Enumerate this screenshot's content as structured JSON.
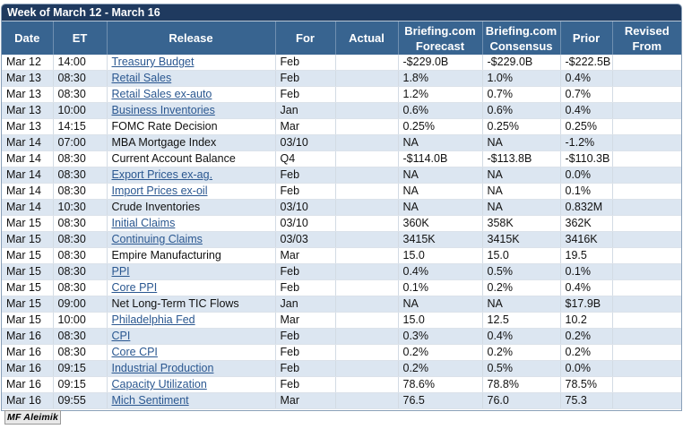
{
  "week_title": "Week of March 12 - March 16",
  "columns": {
    "date": "Date",
    "et": "ET",
    "release": "Release",
    "for": "For",
    "actual": "Actual",
    "forecast_line1": "Briefing.com",
    "forecast_line2": "Forecast",
    "consensus_line1": "Briefing.com",
    "consensus_line2": "Consensus",
    "prior": "Prior",
    "revised_line1": "Revised",
    "revised_line2": "From"
  },
  "rows": [
    {
      "date": "Mar 12",
      "et": "14:00",
      "release": "Treasury Budget",
      "link": true,
      "for": "Feb",
      "actual": "",
      "forecast": "-$229.0B",
      "consensus": "-$229.0B",
      "prior": "-$222.5B",
      "revised": ""
    },
    {
      "date": "Mar 13",
      "et": "08:30",
      "release": "Retail Sales",
      "link": true,
      "for": "Feb",
      "actual": "",
      "forecast": "1.8%",
      "consensus": "1.0%",
      "prior": "0.4%",
      "revised": ""
    },
    {
      "date": "Mar 13",
      "et": "08:30",
      "release": "Retail Sales ex-auto",
      "link": true,
      "for": "Feb",
      "actual": "",
      "forecast": "1.2%",
      "consensus": "0.7%",
      "prior": "0.7%",
      "revised": ""
    },
    {
      "date": "Mar 13",
      "et": "10:00",
      "release": "Business Inventories",
      "link": true,
      "for": "Jan",
      "actual": "",
      "forecast": "0.6%",
      "consensus": "0.6%",
      "prior": "0.4%",
      "revised": ""
    },
    {
      "date": "Mar 13",
      "et": "14:15",
      "release": "FOMC Rate Decision",
      "link": false,
      "for": "Mar",
      "actual": "",
      "forecast": "0.25%",
      "consensus": "0.25%",
      "prior": "0.25%",
      "revised": ""
    },
    {
      "date": "Mar 14",
      "et": "07:00",
      "release": "MBA Mortgage Index",
      "link": false,
      "for": "03/10",
      "actual": "",
      "forecast": "NA",
      "consensus": "NA",
      "prior": "-1.2%",
      "revised": ""
    },
    {
      "date": "Mar 14",
      "et": "08:30",
      "release": "Current Account Balance",
      "link": false,
      "for": "Q4",
      "actual": "",
      "forecast": "-$114.0B",
      "consensus": "-$113.8B",
      "prior": "-$110.3B",
      "revised": ""
    },
    {
      "date": "Mar 14",
      "et": "08:30",
      "release": "Export Prices ex-ag.",
      "link": true,
      "for": "Feb",
      "actual": "",
      "forecast": "NA",
      "consensus": "NA",
      "prior": "0.0%",
      "revised": ""
    },
    {
      "date": "Mar 14",
      "et": "08:30",
      "release": "Import Prices ex-oil",
      "link": true,
      "for": "Feb",
      "actual": "",
      "forecast": "NA",
      "consensus": "NA",
      "prior": "0.1%",
      "revised": ""
    },
    {
      "date": "Mar 14",
      "et": "10:30",
      "release": "Crude Inventories",
      "link": false,
      "for": "03/10",
      "actual": "",
      "forecast": "NA",
      "consensus": "NA",
      "prior": "0.832M",
      "revised": ""
    },
    {
      "date": "Mar 15",
      "et": "08:30",
      "release": "Initial Claims",
      "link": true,
      "for": "03/10",
      "actual": "",
      "forecast": "360K",
      "consensus": "358K",
      "prior": "362K",
      "revised": ""
    },
    {
      "date": "Mar 15",
      "et": "08:30",
      "release": "Continuing Claims",
      "link": true,
      "for": "03/03",
      "actual": "",
      "forecast": "3415K",
      "consensus": "3415K",
      "prior": "3416K",
      "revised": ""
    },
    {
      "date": "Mar 15",
      "et": "08:30",
      "release": "Empire Manufacturing",
      "link": false,
      "for": "Mar",
      "actual": "",
      "forecast": "15.0",
      "consensus": "15.0",
      "prior": "19.5",
      "revised": ""
    },
    {
      "date": "Mar 15",
      "et": "08:30",
      "release": "PPI",
      "link": true,
      "for": "Feb",
      "actual": "",
      "forecast": "0.4%",
      "consensus": "0.5%",
      "prior": "0.1%",
      "revised": ""
    },
    {
      "date": "Mar 15",
      "et": "08:30",
      "release": "Core PPI",
      "link": true,
      "for": "Feb",
      "actual": "",
      "forecast": "0.1%",
      "consensus": "0.2%",
      "prior": "0.4%",
      "revised": ""
    },
    {
      "date": "Mar 15",
      "et": "09:00",
      "release": "Net Long-Term TIC Flows",
      "link": false,
      "for": "Jan",
      "actual": "",
      "forecast": "NA",
      "consensus": "NA",
      "prior": "$17.9B",
      "revised": ""
    },
    {
      "date": "Mar 15",
      "et": "10:00",
      "release": "Philadelphia Fed",
      "link": true,
      "for": "Mar",
      "actual": "",
      "forecast": "15.0",
      "consensus": "12.5",
      "prior": "10.2",
      "revised": ""
    },
    {
      "date": "Mar 16",
      "et": "08:30",
      "release": "CPI",
      "link": true,
      "for": "Feb",
      "actual": "",
      "forecast": "0.3%",
      "consensus": "0.4%",
      "prior": "0.2%",
      "revised": ""
    },
    {
      "date": "Mar 16",
      "et": "08:30",
      "release": "Core CPI",
      "link": true,
      "for": "Feb",
      "actual": "",
      "forecast": "0.2%",
      "consensus": "0.2%",
      "prior": "0.2%",
      "revised": ""
    },
    {
      "date": "Mar 16",
      "et": "09:15",
      "release": "Industrial Production",
      "link": true,
      "for": "Feb",
      "actual": "",
      "forecast": "0.2%",
      "consensus": "0.5%",
      "prior": "0.0%",
      "revised": ""
    },
    {
      "date": "Mar 16",
      "et": "09:15",
      "release": "Capacity Utilization",
      "link": true,
      "for": "Feb",
      "actual": "",
      "forecast": "78.6%",
      "consensus": "78.8%",
      "prior": "78.5%",
      "revised": ""
    },
    {
      "date": "Mar 16",
      "et": "09:55",
      "release": "Mich Sentiment",
      "link": true,
      "for": "Mar",
      "actual": "",
      "forecast": "76.5",
      "consensus": "76.0",
      "prior": "75.3",
      "revised": ""
    }
  ],
  "footer_watermark": "MF Aleimik",
  "colors": {
    "title_bar": "#1f3a5f",
    "header_bg": "#386490",
    "row_alt": "#dce6f1",
    "link": "#2a5790"
  }
}
